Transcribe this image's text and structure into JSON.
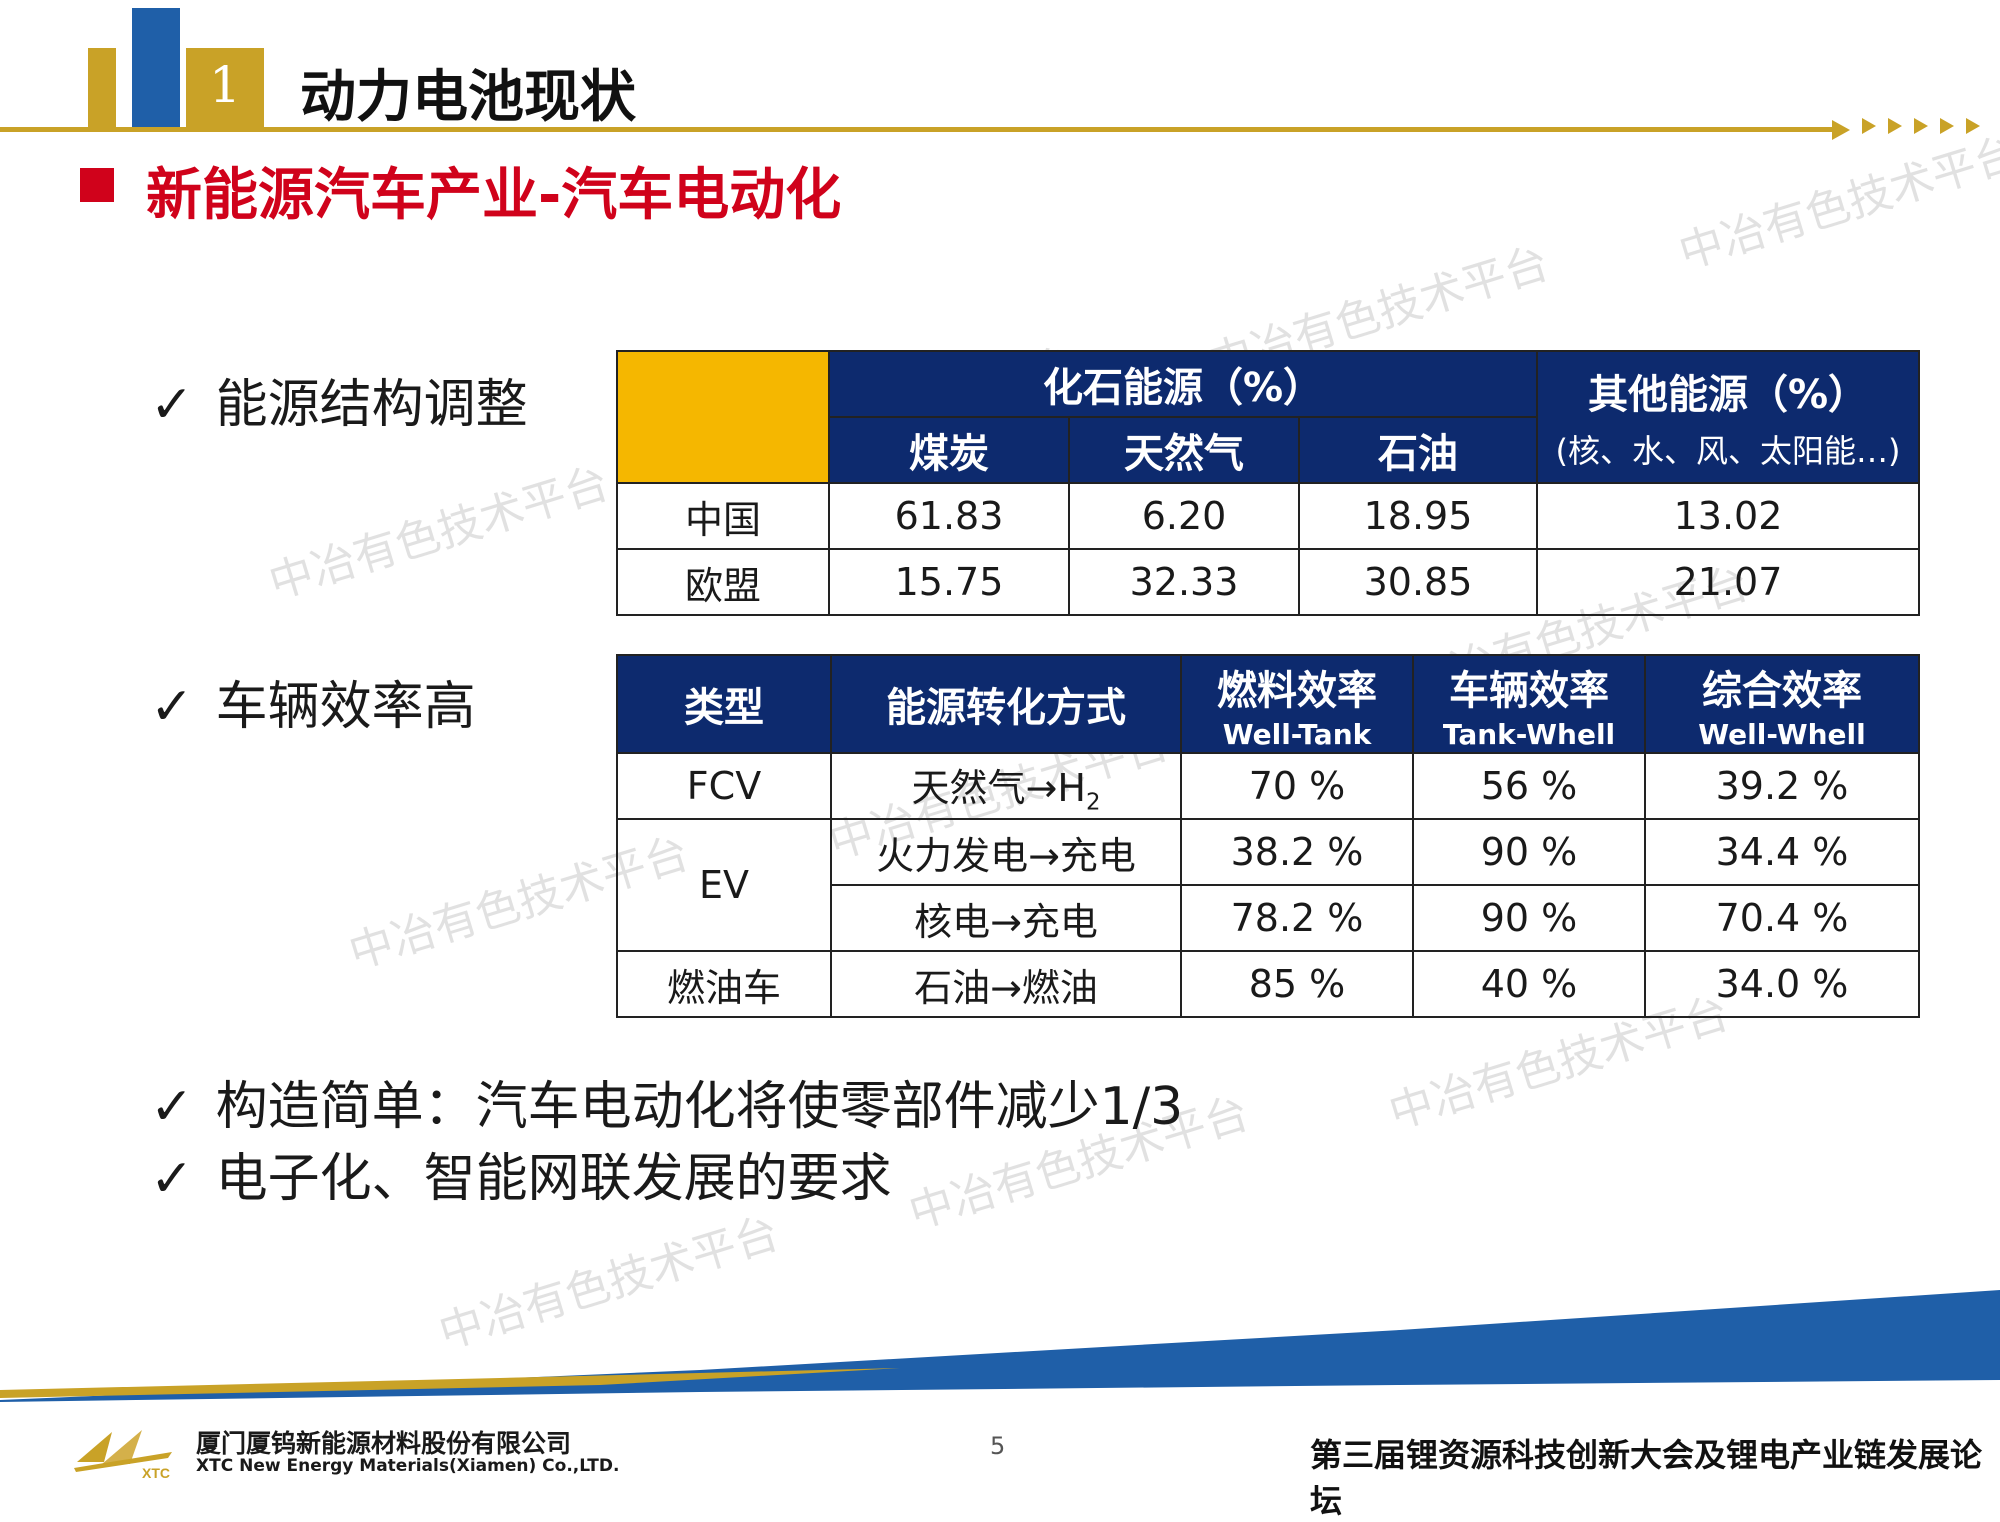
{
  "header": {
    "section_number": "1",
    "title": "动力电池现状"
  },
  "subtitle": "新能源汽车产业-汽车电动化",
  "bullets": {
    "energy": "能源结构调整",
    "vehicle": "车辆效率高",
    "structure": "构造简单：汽车电动化将使零部件减少1/3",
    "electronic": "电子化、智能网联发展的要求"
  },
  "check_mark": "✓",
  "energy_table": {
    "fossil_header": "化石能源（%）",
    "other_header": "其他能源（%）",
    "other_sub": "(核、水、风、太阳能…)",
    "columns": [
      "煤炭",
      "天然气",
      "石油"
    ],
    "rows": [
      {
        "region": "中国",
        "values": [
          "61.83",
          "6.20",
          "18.95",
          "13.02"
        ]
      },
      {
        "region": "欧盟",
        "values": [
          "15.75",
          "32.33",
          "30.85",
          "21.07"
        ]
      }
    ]
  },
  "efficiency_table": {
    "headers": {
      "type": "类型",
      "method": "能源转化方式",
      "fuel": "燃料效率",
      "fuel_sub": "Well-Tank",
      "vehicle": "车辆效率",
      "vehicle_sub": "Tank-Whell",
      "total": "综合效率",
      "total_sub": "Well-Whell"
    },
    "rows": [
      {
        "type": "FCV",
        "method": "天然气→H",
        "method_sub": "2",
        "fuel": "70 %",
        "vehicle": "56 %",
        "total": "39.2 %"
      },
      {
        "type": "EV",
        "method": "火力发电→充电",
        "fuel": "38.2 %",
        "vehicle": "90 %",
        "total": "34.4 %"
      },
      {
        "method": "核电→充电",
        "fuel": "78.2 %",
        "vehicle": "90 %",
        "total": "70.4 %"
      },
      {
        "type": "燃油车",
        "method": "石油→燃油",
        "fuel": "85 %",
        "vehicle": "40 %",
        "total": "34.0 %"
      }
    ]
  },
  "footer": {
    "company_cn": "厦门厦钨新能源材料股份有限公司",
    "company_en": "XTC New Energy Materials(Xiamen) Co.,LTD.",
    "logo_text": "XTC",
    "page": "5",
    "forum": "第三届锂资源科技创新大会及锂电产业链发展论坛"
  },
  "watermark": "中冶有色技术平台",
  "colors": {
    "gold": "#c9a227",
    "blue": "#1f5fa8",
    "red": "#d0021b",
    "navy": "#0d2a6e",
    "yellow": "#f5b700"
  }
}
